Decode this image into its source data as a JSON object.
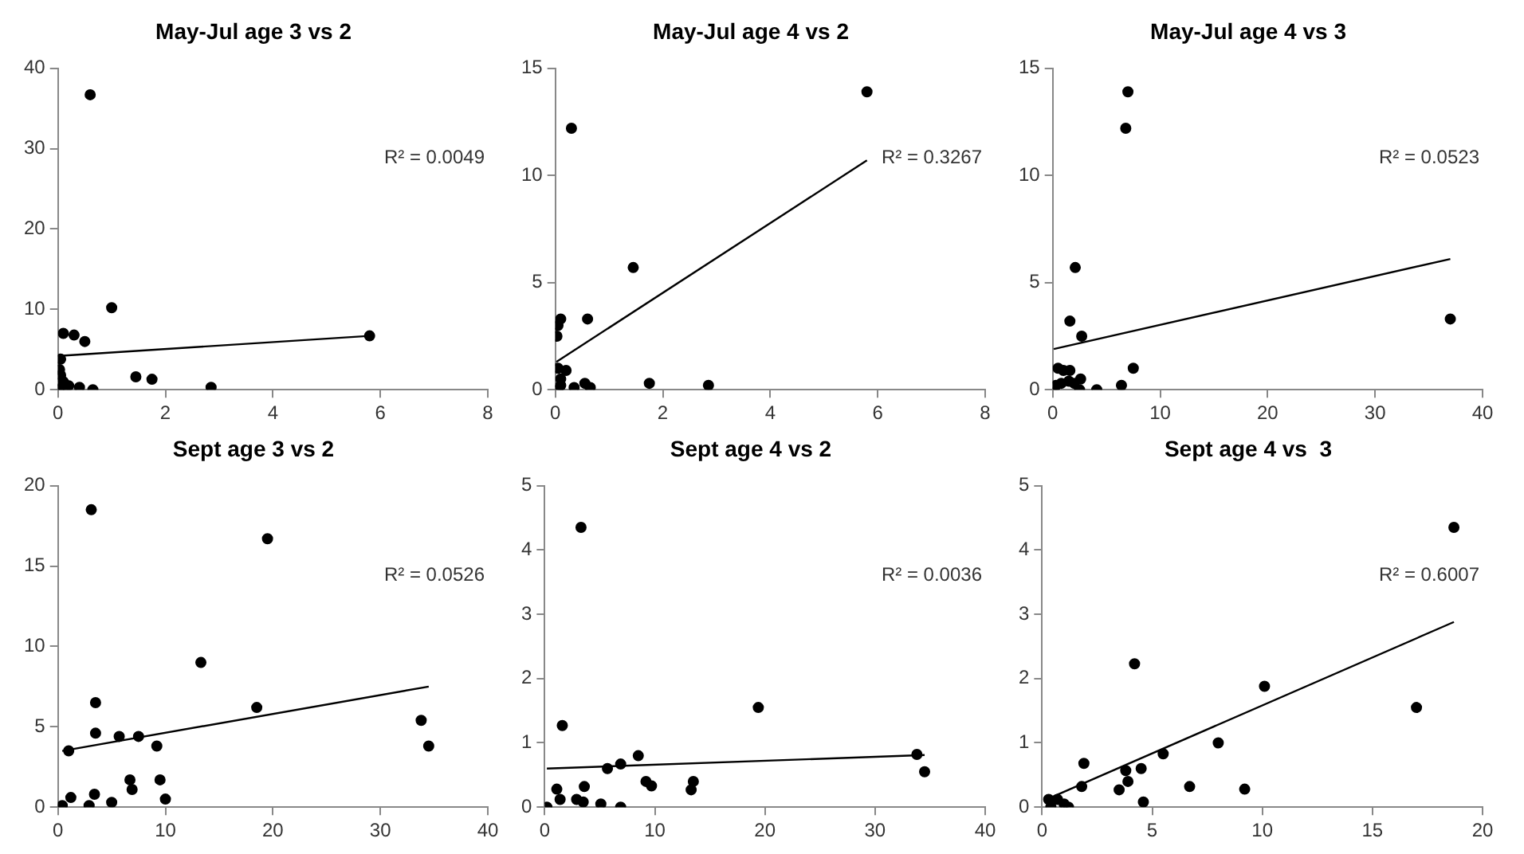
{
  "chart_data": [
    {
      "type": "scatter",
      "title": "May-Jul age 3 vs 2",
      "xlim": [
        0,
        8
      ],
      "xticks": [
        0,
        2,
        4,
        6,
        8
      ],
      "ylim": [
        0,
        40
      ],
      "yticks": [
        0,
        10,
        20,
        30,
        40
      ],
      "marker": "circle",
      "annotations": [
        "R² = 0.0049"
      ],
      "series": [
        {
          "type": "scatter",
          "color": "#000000",
          "x": [
            0.6,
            1.0,
            0.1,
            0.3,
            0.5,
            5.8,
            0.05,
            0.03,
            0.05,
            0.1,
            0.2,
            0.05,
            0.4,
            0.65,
            1.45,
            1.75,
            2.85,
            0.02
          ],
          "values": [
            36.7,
            10.2,
            7.0,
            6.8,
            6.0,
            6.7,
            3.8,
            2.5,
            1.8,
            1.0,
            0.5,
            0.2,
            0.3,
            0.0,
            1.6,
            1.3,
            0.3,
            0.0
          ]
        },
        {
          "type": "line",
          "color": "#000000",
          "marker": "none",
          "x": [
            0.02,
            5.8
          ],
          "values": [
            4.2,
            6.7
          ]
        }
      ]
    },
    {
      "type": "scatter",
      "title": "May-Jul age 4 vs 2",
      "xlim": [
        0,
        8
      ],
      "xticks": [
        0,
        2,
        4,
        6,
        8
      ],
      "ylim": [
        0,
        15
      ],
      "yticks": [
        0,
        5,
        10,
        15
      ],
      "marker": "circle",
      "annotations": [
        "R² = 0.3267"
      ],
      "series": [
        {
          "type": "scatter",
          "color": "#000000",
          "x": [
            0.3,
            5.8,
            1.45,
            0.6,
            0.1,
            0.05,
            0.03,
            0.05,
            0.2,
            0.1,
            0.05,
            0.35,
            0.55,
            0.65,
            1.75,
            2.85,
            0.1
          ],
          "values": [
            12.2,
            13.9,
            5.7,
            3.3,
            3.3,
            3.0,
            2.5,
            1.0,
            0.9,
            0.5,
            0.0,
            0.1,
            0.3,
            0.1,
            0.3,
            0.2,
            0.2
          ]
        },
        {
          "type": "line",
          "color": "#000000",
          "marker": "none",
          "x": [
            0.02,
            5.8
          ],
          "values": [
            1.3,
            10.7
          ]
        }
      ]
    },
    {
      "type": "scatter",
      "title": "May-Jul age 4 vs 3",
      "xlim": [
        0,
        40
      ],
      "xticks": [
        0,
        10,
        20,
        30,
        40
      ],
      "ylim": [
        0,
        15
      ],
      "yticks": [
        0,
        5,
        10,
        15
      ],
      "marker": "circle",
      "annotations": [
        "R² = 0.0523"
      ],
      "series": [
        {
          "type": "scatter",
          "color": "#000000",
          "x": [
            7,
            6.8,
            2.1,
            1.6,
            2.7,
            37,
            7.5,
            0.5,
            1.0,
            1.6,
            0.3,
            0.8,
            1.5,
            2.6,
            2.5,
            4.1,
            6.4,
            2.0
          ],
          "values": [
            13.9,
            12.2,
            5.7,
            3.2,
            2.5,
            3.3,
            1.0,
            1.0,
            0.9,
            0.9,
            0.2,
            0.3,
            0.4,
            0.5,
            0.0,
            0.0,
            0.2,
            0.3
          ]
        },
        {
          "type": "line",
          "color": "#000000",
          "marker": "none",
          "x": [
            0.1,
            37
          ],
          "values": [
            1.9,
            6.1
          ]
        }
      ]
    },
    {
      "type": "scatter",
      "title": "Sept age 3 vs 2",
      "xlim": [
        0,
        40
      ],
      "xticks": [
        0,
        10,
        20,
        30,
        40
      ],
      "ylim": [
        0,
        20
      ],
      "yticks": [
        0,
        5,
        10,
        15,
        20
      ],
      "marker": "circle",
      "annotations": [
        "R² = 0.0526"
      ],
      "series": [
        {
          "type": "scatter",
          "color": "#000000",
          "x": [
            3.1,
            19.5,
            13.3,
            18.5,
            3.5,
            3.5,
            5.7,
            7.5,
            9.2,
            1.0,
            33.8,
            34.5,
            6.7,
            6.9,
            9.5,
            10.0,
            0.4,
            1.2,
            2.9,
            3.4,
            5.0
          ],
          "values": [
            18.5,
            16.7,
            9.0,
            6.2,
            6.5,
            4.6,
            4.4,
            4.4,
            3.8,
            3.5,
            5.4,
            3.8,
            1.7,
            1.1,
            1.7,
            0.5,
            0.1,
            0.6,
            0.1,
            0.8,
            0.3
          ]
        },
        {
          "type": "line",
          "color": "#000000",
          "marker": "none",
          "x": [
            0.4,
            34.5
          ],
          "values": [
            3.5,
            7.5
          ]
        }
      ]
    },
    {
      "type": "scatter",
      "title": "Sept age 4 vs 2",
      "xlim": [
        0,
        40
      ],
      "xticks": [
        0,
        10,
        20,
        30,
        40
      ],
      "ylim": [
        0,
        5
      ],
      "yticks": [
        0,
        1,
        2,
        3,
        4,
        5
      ],
      "marker": "circle",
      "annotations": [
        "R² = 0.0036"
      ],
      "series": [
        {
          "type": "scatter",
          "color": "#000000",
          "x": [
            3.3,
            19.4,
            1.6,
            8.5,
            6.9,
            5.7,
            33.8,
            34.5,
            9.2,
            9.7,
            13.3,
            13.5,
            1.1,
            1.4,
            2.9,
            3.5,
            3.6,
            5.1,
            6.9,
            0.2
          ],
          "values": [
            4.35,
            1.55,
            1.27,
            0.8,
            0.67,
            0.6,
            0.82,
            0.55,
            0.4,
            0.33,
            0.27,
            0.4,
            0.28,
            0.12,
            0.12,
            0.08,
            0.32,
            0.05,
            0.0,
            0.0
          ]
        },
        {
          "type": "line",
          "color": "#000000",
          "marker": "none",
          "x": [
            0.2,
            34.5
          ],
          "values": [
            0.6,
            0.81
          ]
        }
      ]
    },
    {
      "type": "scatter",
      "title": "Sept age 4 vs  3",
      "xlim": [
        0,
        20
      ],
      "xticks": [
        0,
        5,
        10,
        15,
        20
      ],
      "ylim": [
        0,
        5
      ],
      "yticks": [
        0,
        1,
        2,
        3,
        4,
        5
      ],
      "marker": "circle",
      "annotations": [
        "R² = 0.6007"
      ],
      "series": [
        {
          "type": "scatter",
          "color": "#000000",
          "x": [
            18.7,
            4.2,
            10.1,
            17,
            8,
            5.5,
            1.9,
            4.5,
            3.8,
            3.9,
            3.5,
            1.8,
            6.7,
            9.2,
            4.6,
            0.3,
            0.5,
            0.7,
            1.0,
            1.2,
            0.4
          ],
          "values": [
            4.35,
            2.23,
            1.88,
            1.55,
            1.0,
            0.83,
            0.68,
            0.6,
            0.57,
            0.4,
            0.27,
            0.32,
            0.32,
            0.28,
            0.08,
            0.12,
            null,
            0.12,
            0.05,
            0.0,
            0.0
          ]
        },
        {
          "type": "line",
          "color": "#000000",
          "marker": "none",
          "x": [
            0.4,
            18.7
          ],
          "values": [
            0.15,
            2.88
          ]
        }
      ]
    }
  ]
}
